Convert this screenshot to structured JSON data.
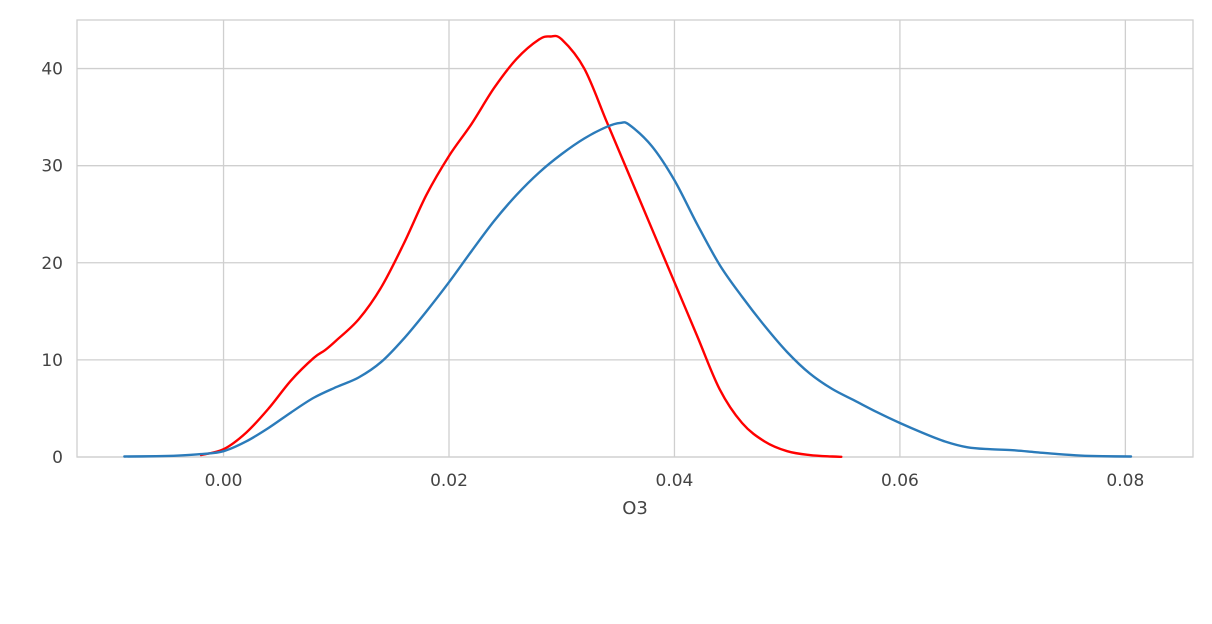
{
  "chart_data": {
    "type": "line",
    "title": "",
    "xlabel": "O3",
    "ylabel": "",
    "xlim": [
      -0.013,
      0.086
    ],
    "ylim": [
      0,
      45
    ],
    "xticks": [
      0.0,
      0.02,
      0.04,
      0.06,
      0.08
    ],
    "xtick_labels": [
      "0.00",
      "0.02",
      "0.04",
      "0.06",
      "0.08"
    ],
    "yticks": [
      0,
      10,
      20,
      30,
      40
    ],
    "ytick_labels": [
      "0",
      "10",
      "20",
      "30",
      "40"
    ],
    "grid": true,
    "legend": "none",
    "series": [
      {
        "color": "#ff0000",
        "x": [
          -0.002,
          0.0,
          0.002,
          0.004,
          0.006,
          0.008,
          0.009,
          0.01,
          0.012,
          0.014,
          0.016,
          0.018,
          0.02,
          0.022,
          0.024,
          0.026,
          0.028,
          0.029,
          0.03,
          0.032,
          0.034,
          0.036,
          0.038,
          0.04,
          0.042,
          0.044,
          0.046,
          0.048,
          0.05,
          0.052,
          0.054,
          0.0548
        ],
        "y": [
          0.2,
          0.8,
          2.5,
          5.0,
          7.9,
          10.2,
          11.0,
          12.0,
          14.2,
          17.5,
          22.0,
          27.0,
          31.0,
          34.3,
          38.0,
          41.0,
          43.0,
          43.3,
          43.0,
          40.0,
          34.5,
          29.0,
          23.5,
          18.0,
          12.5,
          7.0,
          3.5,
          1.6,
          0.6,
          0.2,
          0.05,
          0.02
        ]
      },
      {
        "color": "#2b7bba",
        "x": [
          -0.0088,
          -0.006,
          -0.004,
          -0.002,
          0.0,
          0.002,
          0.004,
          0.006,
          0.008,
          0.01,
          0.012,
          0.014,
          0.016,
          0.018,
          0.02,
          0.022,
          0.024,
          0.026,
          0.028,
          0.03,
          0.032,
          0.034,
          0.0352,
          0.036,
          0.038,
          0.04,
          0.042,
          0.044,
          0.046,
          0.048,
          0.05,
          0.052,
          0.054,
          0.056,
          0.058,
          0.06,
          0.062,
          0.064,
          0.066,
          0.068,
          0.07,
          0.072,
          0.074,
          0.076,
          0.078,
          0.0805
        ],
        "y": [
          0.05,
          0.08,
          0.15,
          0.3,
          0.6,
          1.6,
          3.0,
          4.6,
          6.1,
          7.2,
          8.2,
          9.8,
          12.2,
          15.0,
          18.0,
          21.2,
          24.3,
          27.0,
          29.3,
          31.2,
          32.8,
          34.0,
          34.4,
          34.2,
          32.0,
          28.5,
          24.0,
          19.8,
          16.5,
          13.5,
          10.8,
          8.6,
          7.0,
          5.8,
          4.6,
          3.5,
          2.5,
          1.6,
          1.0,
          0.8,
          0.7,
          0.5,
          0.3,
          0.15,
          0.08,
          0.05
        ]
      }
    ]
  }
}
